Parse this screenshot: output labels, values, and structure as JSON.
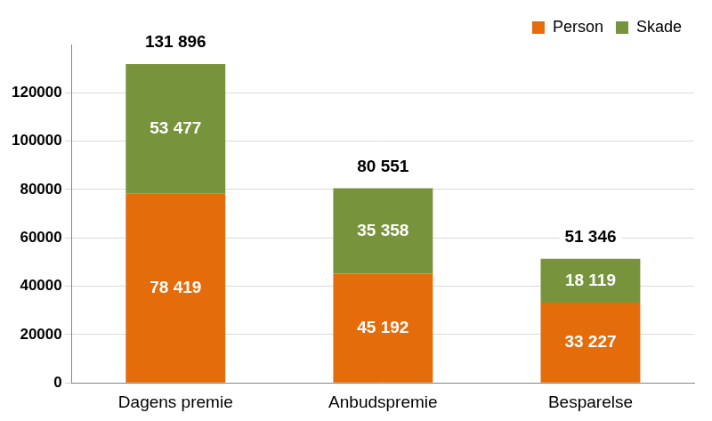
{
  "chart_data": {
    "type": "bar",
    "stacked": true,
    "categories": [
      "Dagens premie",
      "Anbudspremie",
      "Besparelse"
    ],
    "series": [
      {
        "name": "Person",
        "color": "#e46c0a",
        "values": [
          78419,
          45192,
          33227
        ],
        "value_labels": [
          "78 419",
          "45 192",
          "33 227"
        ]
      },
      {
        "name": "Skade",
        "color": "#77933c",
        "values": [
          53477,
          35358,
          18119
        ],
        "value_labels": [
          "53 477",
          "35 358",
          "18 119"
        ]
      }
    ],
    "totals": [
      131896,
      80551,
      51346
    ],
    "total_labels": [
      "131 896",
      "80 551",
      "51 346"
    ],
    "ylim": [
      0,
      140000
    ],
    "yticks": [
      0,
      20000,
      40000,
      60000,
      80000,
      100000,
      120000
    ],
    "grid": true,
    "legend": "upper right",
    "data_labels": true
  }
}
